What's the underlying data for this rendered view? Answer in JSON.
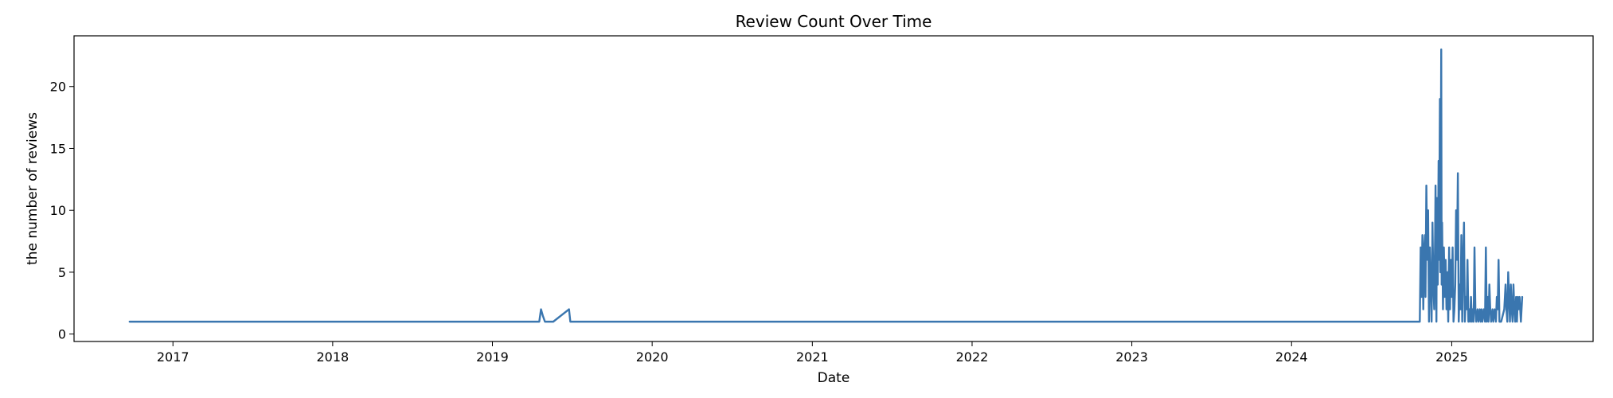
{
  "chart_data": {
    "type": "line",
    "title": "Review Count Over Time",
    "xlabel": "Date",
    "ylabel": "the number of reviews",
    "xlim": [
      "2016-05-20",
      "2025-11-20"
    ],
    "ylim": [
      -0.6,
      24.1
    ],
    "x_ticks": [
      {
        "date": "2017-01-01",
        "label": "2017"
      },
      {
        "date": "2018-01-01",
        "label": "2018"
      },
      {
        "date": "2019-01-01",
        "label": "2019"
      },
      {
        "date": "2020-01-01",
        "label": "2020"
      },
      {
        "date": "2021-01-01",
        "label": "2021"
      },
      {
        "date": "2022-01-01",
        "label": "2022"
      },
      {
        "date": "2023-01-01",
        "label": "2023"
      },
      {
        "date": "2024-01-01",
        "label": "2024"
      },
      {
        "date": "2025-01-01",
        "label": "2025"
      }
    ],
    "y_ticks": [
      {
        "value": 0,
        "label": "0"
      },
      {
        "value": 5,
        "label": "5"
      },
      {
        "value": 10,
        "label": "10"
      },
      {
        "value": 15,
        "label": "15"
      },
      {
        "value": 20,
        "label": "20"
      }
    ],
    "grid": false,
    "series": [
      {
        "color": "#3a76af",
        "points": [
          [
            "2016-09-24",
            1
          ],
          [
            "2019-04-18",
            1
          ],
          [
            "2019-04-22",
            2
          ],
          [
            "2019-04-26",
            1.5
          ],
          [
            "2019-05-01",
            1
          ],
          [
            "2019-05-20",
            1
          ],
          [
            "2019-06-25",
            2
          ],
          [
            "2019-06-28",
            1
          ],
          [
            "2024-10-20",
            1
          ],
          [
            "2024-10-22",
            7
          ],
          [
            "2024-10-24",
            3
          ],
          [
            "2024-10-26",
            8
          ],
          [
            "2024-10-28",
            2
          ],
          [
            "2024-10-30",
            7
          ],
          [
            "2024-11-01",
            8
          ],
          [
            "2024-11-02",
            3
          ],
          [
            "2024-11-04",
            12
          ],
          [
            "2024-11-06",
            6
          ],
          [
            "2024-11-08",
            10
          ],
          [
            "2024-11-10",
            1
          ],
          [
            "2024-11-12",
            7
          ],
          [
            "2024-11-14",
            4
          ],
          [
            "2024-11-16",
            1
          ],
          [
            "2024-11-18",
            9
          ],
          [
            "2024-11-20",
            4
          ],
          [
            "2024-11-22",
            2
          ],
          [
            "2024-11-24",
            8
          ],
          [
            "2024-11-25",
            12
          ],
          [
            "2024-11-27",
            1
          ],
          [
            "2024-11-28",
            11
          ],
          [
            "2024-11-30",
            4
          ],
          [
            "2024-12-02",
            14
          ],
          [
            "2024-12-03",
            6
          ],
          [
            "2024-12-05",
            19
          ],
          [
            "2024-12-06",
            5
          ],
          [
            "2024-12-08",
            23
          ],
          [
            "2024-12-09",
            4
          ],
          [
            "2024-12-10",
            9
          ],
          [
            "2024-12-12",
            2
          ],
          [
            "2024-12-14",
            7
          ],
          [
            "2024-12-16",
            3
          ],
          [
            "2024-12-18",
            6
          ],
          [
            "2024-12-20",
            2
          ],
          [
            "2024-12-22",
            5
          ],
          [
            "2024-12-24",
            1
          ],
          [
            "2024-12-26",
            7
          ],
          [
            "2024-12-28",
            2
          ],
          [
            "2024-12-30",
            6
          ],
          [
            "2025-01-01",
            3
          ],
          [
            "2025-01-03",
            7
          ],
          [
            "2025-01-05",
            1
          ],
          [
            "2025-01-07",
            2
          ],
          [
            "2025-01-09",
            4
          ],
          [
            "2025-01-11",
            10
          ],
          [
            "2025-01-13",
            6
          ],
          [
            "2025-01-15",
            13
          ],
          [
            "2025-01-17",
            1
          ],
          [
            "2025-01-19",
            4
          ],
          [
            "2025-01-21",
            2
          ],
          [
            "2025-01-23",
            8
          ],
          [
            "2025-01-25",
            1
          ],
          [
            "2025-01-27",
            6
          ],
          [
            "2025-01-29",
            9
          ],
          [
            "2025-01-31",
            1
          ],
          [
            "2025-02-02",
            3
          ],
          [
            "2025-02-04",
            2
          ],
          [
            "2025-02-06",
            6
          ],
          [
            "2025-02-08",
            1
          ],
          [
            "2025-02-10",
            2
          ],
          [
            "2025-02-12",
            1
          ],
          [
            "2025-02-14",
            3
          ],
          [
            "2025-02-16",
            1
          ],
          [
            "2025-02-18",
            2
          ],
          [
            "2025-02-20",
            1
          ],
          [
            "2025-02-22",
            7
          ],
          [
            "2025-02-24",
            2
          ],
          [
            "2025-02-26",
            1
          ],
          [
            "2025-03-01",
            2
          ],
          [
            "2025-03-03",
            1
          ],
          [
            "2025-03-06",
            2
          ],
          [
            "2025-03-08",
            1
          ],
          [
            "2025-03-10",
            2
          ],
          [
            "2025-03-12",
            1
          ],
          [
            "2025-03-15",
            2
          ],
          [
            "2025-03-18",
            1
          ],
          [
            "2025-03-20",
            7
          ],
          [
            "2025-03-22",
            1
          ],
          [
            "2025-03-24",
            3
          ],
          [
            "2025-03-26",
            1
          ],
          [
            "2025-03-28",
            4
          ],
          [
            "2025-03-30",
            2
          ],
          [
            "2025-04-01",
            1
          ],
          [
            "2025-04-04",
            2
          ],
          [
            "2025-04-06",
            1
          ],
          [
            "2025-04-09",
            2
          ],
          [
            "2025-04-12",
            1
          ],
          [
            "2025-04-14",
            3
          ],
          [
            "2025-04-16",
            2
          ],
          [
            "2025-04-18",
            6
          ],
          [
            "2025-04-20",
            1
          ],
          [
            "2025-04-24",
            1
          ],
          [
            "2025-05-01",
            2
          ],
          [
            "2025-05-04",
            4
          ],
          [
            "2025-05-06",
            2
          ],
          [
            "2025-05-08",
            1
          ],
          [
            "2025-05-10",
            5
          ],
          [
            "2025-05-12",
            3
          ],
          [
            "2025-05-14",
            1
          ],
          [
            "2025-05-16",
            4
          ],
          [
            "2025-05-18",
            2
          ],
          [
            "2025-05-20",
            1
          ],
          [
            "2025-05-22",
            4
          ],
          [
            "2025-05-24",
            2
          ],
          [
            "2025-05-26",
            1
          ],
          [
            "2025-05-28",
            3
          ],
          [
            "2025-05-30",
            1
          ],
          [
            "2025-06-01",
            3
          ],
          [
            "2025-06-03",
            2
          ],
          [
            "2025-06-05",
            3
          ],
          [
            "2025-06-08",
            1
          ],
          [
            "2025-06-11",
            3
          ]
        ]
      }
    ]
  }
}
